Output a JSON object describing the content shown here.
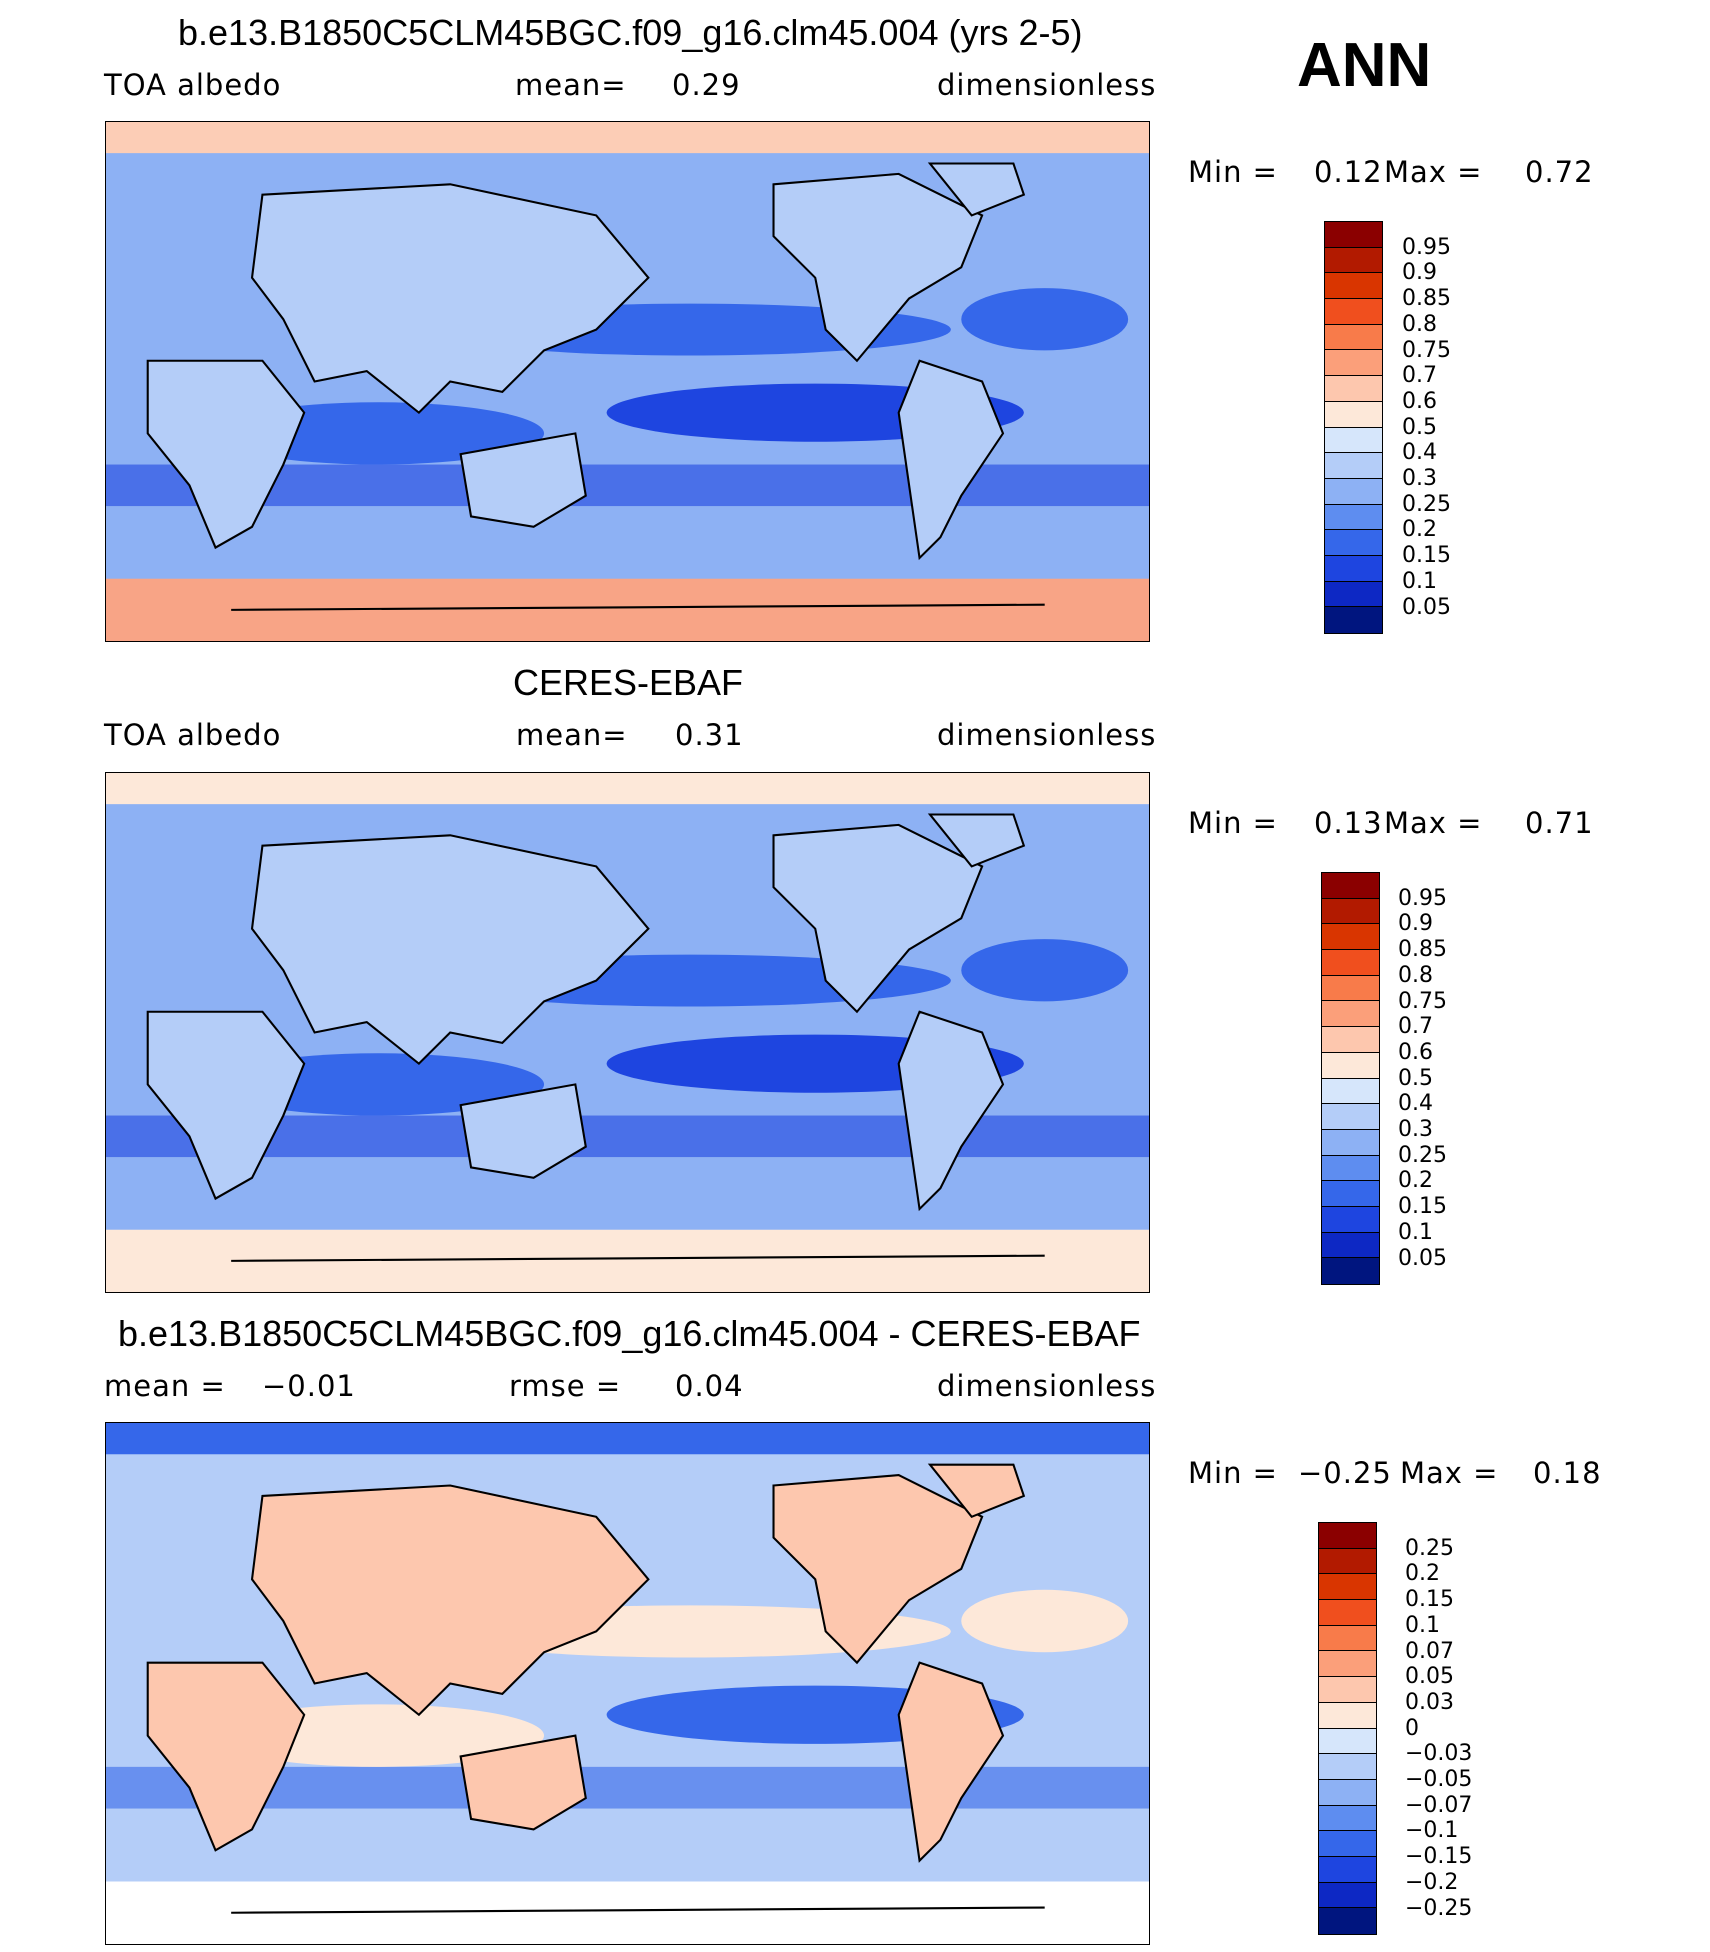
{
  "season": "ANN",
  "panels": [
    {
      "id": "model",
      "title": "b.e13.B1850C5CLM45BGC.f09_g16.clm45.004 (yrs 2-5)",
      "left_label": "TOA albedo",
      "mid_label": "mean=",
      "mid_value": "0.29",
      "units": "dimensionless",
      "min_label": "Min =",
      "min_value": "0.12",
      "max_label": "Max =",
      "max_value": "0.72",
      "legend_levels": [
        "0.95",
        "0.9",
        "0.85",
        "0.8",
        "0.75",
        "0.7",
        "0.6",
        "0.5",
        "0.4",
        "0.3",
        "0.25",
        "0.2",
        "0.15",
        "0.1",
        "0.05"
      ],
      "legend_colors": [
        "#8b0000",
        "#b21a00",
        "#d93500",
        "#f04f1e",
        "#f87b4a",
        "#fb9f7a",
        "#fdc7ae",
        "#fde8d9",
        "#d6e6fb",
        "#b4cdf8",
        "#8db1f4",
        "#5e8df0",
        "#3567ea",
        "#1e45e0",
        "#0d28c4",
        "#00157f"
      ],
      "map": {
        "polar_cap": "#f8a486",
        "polar_n": "#fccdb6",
        "base": "#8db1f4",
        "trop": "#3567ea",
        "deep": "#1e45e0",
        "land": "#b4cdf8"
      }
    },
    {
      "id": "obs",
      "title": "CERES-EBAF",
      "left_label": "TOA albedo",
      "mid_label": "mean=",
      "mid_value": "0.31",
      "units": "dimensionless",
      "min_label": "Min =",
      "min_value": "0.13",
      "max_label": "Max =",
      "max_value": "0.71",
      "legend_levels": [
        "0.95",
        "0.9",
        "0.85",
        "0.8",
        "0.75",
        "0.7",
        "0.6",
        "0.5",
        "0.4",
        "0.3",
        "0.25",
        "0.2",
        "0.15",
        "0.1",
        "0.05"
      ],
      "legend_colors": [
        "#8b0000",
        "#b21a00",
        "#d93500",
        "#f04f1e",
        "#f87b4a",
        "#fb9f7a",
        "#fdc7ae",
        "#fde8d9",
        "#d6e6fb",
        "#b4cdf8",
        "#8db1f4",
        "#5e8df0",
        "#3567ea",
        "#1e45e0",
        "#0d28c4",
        "#00157f"
      ],
      "map": {
        "polar_cap": "#fde8d9",
        "polar_n": "#fde8d9",
        "base": "#8db1f4",
        "trop": "#3567ea",
        "deep": "#1e45e0",
        "land": "#b4cdf8"
      }
    },
    {
      "id": "diff",
      "title": "b.e13.B1850C5CLM45BGC.f09_g16.clm45.004 - CERES-EBAF",
      "left_label": "mean =",
      "left_value": "−0.01",
      "mid_label": "rmse =",
      "mid_value": "0.04",
      "units": "dimensionless",
      "min_label": "Min =",
      "min_value": "−0.25",
      "max_label": "Max =",
      "max_value": "0.18",
      "legend_levels": [
        "0.25",
        "0.2",
        "0.15",
        "0.1",
        "0.07",
        "0.05",
        "0.03",
        "0",
        "−0.03",
        "−0.05",
        "−0.07",
        "−0.1",
        "−0.15",
        "−0.2",
        "−0.25"
      ],
      "legend_colors": [
        "#8b0000",
        "#b21a00",
        "#d93500",
        "#f04f1e",
        "#f87b4a",
        "#fb9f7a",
        "#fdc7ae",
        "#fde8d9",
        "#d6e6fb",
        "#b4cdf8",
        "#8db1f4",
        "#5e8df0",
        "#3567ea",
        "#1e45e0",
        "#0d28c4",
        "#00157f"
      ],
      "map": {
        "polar_cap": "#ffffff",
        "polar_n": "#3567ea",
        "base": "#b4cdf8",
        "trop": "#fde8d9",
        "deep": "#3567ea",
        "land": "#fdc7ae"
      }
    }
  ]
}
